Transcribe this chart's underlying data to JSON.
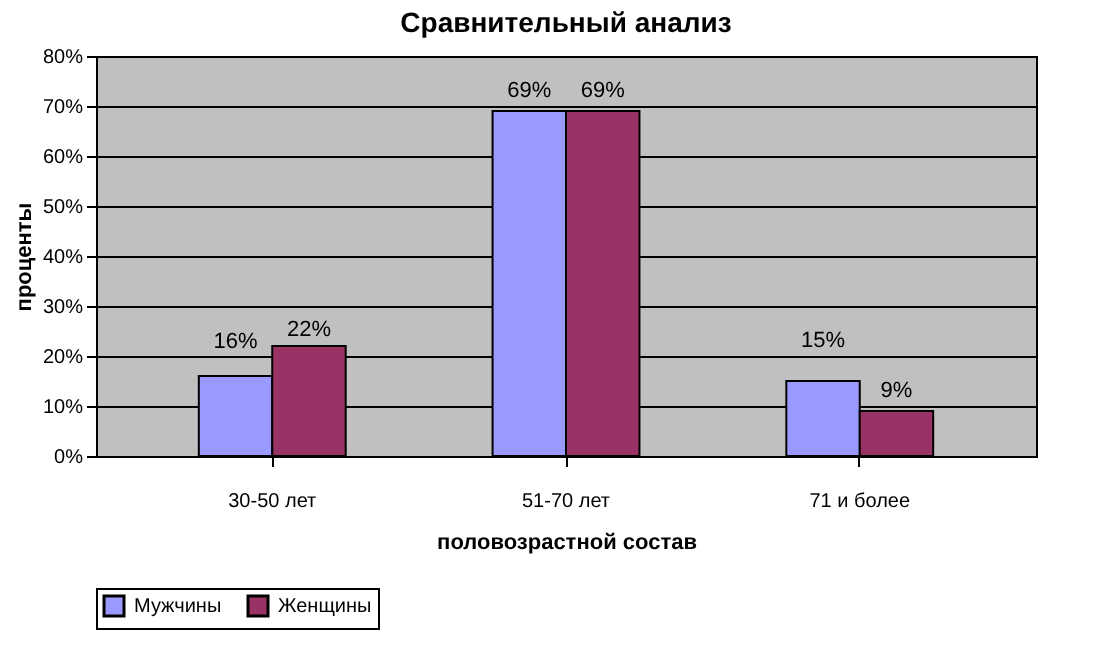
{
  "chart_data": {
    "type": "bar",
    "title": "Сравнительный анализ",
    "xlabel": "половозрастной состав",
    "ylabel": "проценты",
    "categories": [
      "30-50 лет",
      "51-70 лет",
      "71 и более"
    ],
    "series": [
      {
        "name": "Мужчины",
        "color": "#9999ff",
        "values": [
          16,
          69,
          15
        ],
        "value_labels": [
          "16%",
          "69%",
          "15%"
        ]
      },
      {
        "name": "Женщины",
        "color": "#993366",
        "values": [
          22,
          69,
          9
        ],
        "value_labels": [
          "22%",
          "69%",
          "9%"
        ]
      }
    ],
    "ylim": [
      0,
      80
    ],
    "yticks": [
      {
        "value": 0,
        "label": "0%"
      },
      {
        "value": 10,
        "label": "10%"
      },
      {
        "value": 20,
        "label": "20%"
      },
      {
        "value": 30,
        "label": "30%"
      },
      {
        "value": 40,
        "label": "40%"
      },
      {
        "value": 50,
        "label": "50%"
      },
      {
        "value": 60,
        "label": "60%"
      },
      {
        "value": 70,
        "label": "70%"
      },
      {
        "value": 80,
        "label": "80%"
      }
    ],
    "grid": "y",
    "legend": "bottom"
  }
}
